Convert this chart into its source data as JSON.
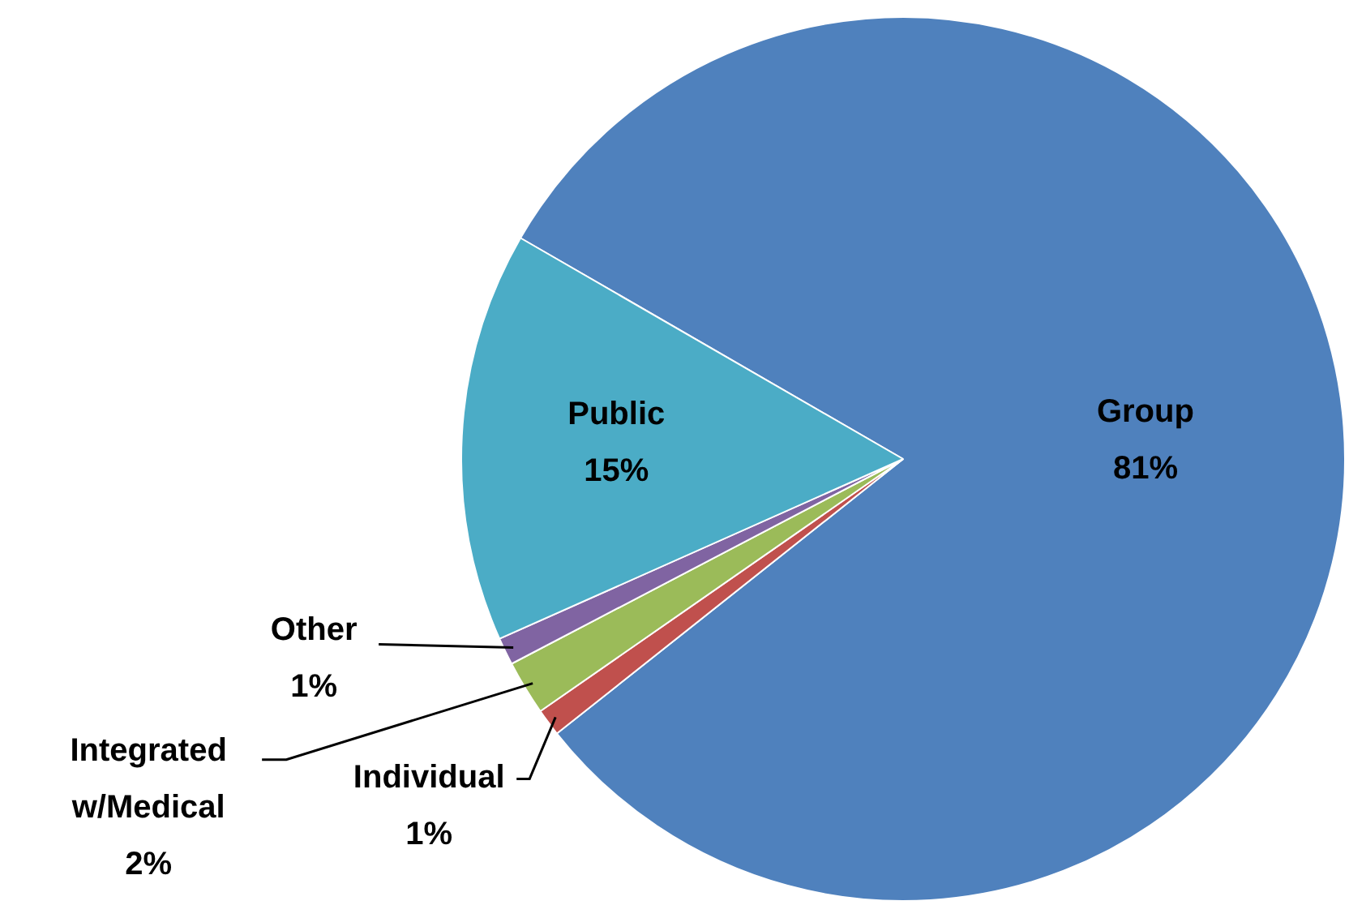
{
  "chart_data": {
    "type": "pie",
    "categories": [
      "Group",
      "Individual",
      "Integrated w/Medical",
      "Other",
      "Public"
    ],
    "values": [
      81,
      1,
      2,
      1,
      15
    ],
    "colors": [
      "#4f81bd",
      "#c0504d",
      "#9bbb59",
      "#8064a2",
      "#4bacc6"
    ],
    "value_labels": [
      "81%",
      "1%",
      "2%",
      "1%",
      "15%"
    ],
    "legend": false
  }
}
